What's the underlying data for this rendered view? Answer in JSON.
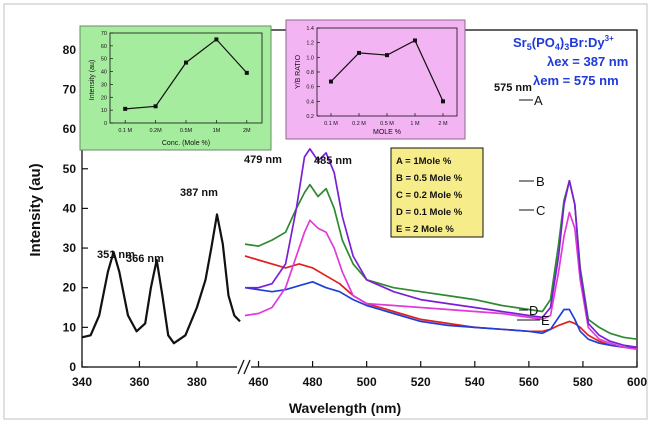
{
  "chart_data": {
    "type": "line",
    "title_parts": {
      "sr": "Sr",
      "sr_sub": "5",
      "po": "(PO",
      "po_sub": "4",
      "po_close": ")",
      "bi": "3",
      "br": "Br:Dy",
      "sup": "3+"
    },
    "ex_label": "λex = 387 nm",
    "em_label": "λem = 575 nm",
    "ylabel": "Intensity (au)",
    "xlabel": "Wavelength (nm)",
    "ylim": [
      0,
      85
    ],
    "y_ticks": [
      "0",
      "10",
      "20",
      "30",
      "40",
      "50",
      "60",
      "70",
      "80"
    ],
    "x_ticks_left": [
      "340",
      "360",
      "380"
    ],
    "x_ticks_right": [
      "460",
      "480",
      "500",
      "520",
      "540",
      "560",
      "580",
      "600"
    ],
    "xlim_left": [
      340,
      395
    ],
    "xlim_right": [
      455,
      600
    ],
    "colors": {
      "excitation": "#111111",
      "A": "#7b1fd6",
      "B": "#2e8a2e",
      "C": "#e03ad8",
      "D": "#1f3fd8",
      "E": "#e02020"
    },
    "excitation": {
      "x": [
        340,
        343,
        346,
        349,
        351,
        353,
        356,
        359,
        362,
        364,
        366,
        368,
        370,
        372,
        376,
        380,
        383,
        385,
        387,
        389,
        391,
        393,
        395
      ],
      "y": [
        7.5,
        8,
        13,
        24,
        29,
        24,
        13,
        9,
        11,
        20,
        27,
        18,
        8,
        6,
        8,
        15,
        22,
        30,
        38.5,
        31,
        18,
        13,
        11.5
      ]
    },
    "peak_labels": {
      "e351": "351 nm",
      "e366": "366 nm",
      "e387": "387 nm",
      "e479": "479 nm",
      "e485": "485 nm",
      "e575": "575 nm"
    },
    "series": [
      {
        "name": "A",
        "x": [
          455,
          460,
          465,
          470,
          474,
          477,
          479,
          482,
          485,
          488,
          491,
          495,
          500,
          510,
          520,
          530,
          540,
          550,
          560,
          565,
          568,
          571,
          573,
          575,
          577,
          579,
          582,
          586,
          590,
          595,
          600
        ],
        "y": [
          20,
          20,
          21,
          26,
          40,
          53,
          55,
          52,
          54,
          49,
          38,
          28,
          22,
          19,
          17,
          16,
          15,
          14,
          13,
          12.5,
          15,
          28,
          41,
          47,
          41,
          24,
          11,
          8,
          6.5,
          5.5,
          5
        ]
      },
      {
        "name": "B",
        "x": [
          455,
          460,
          465,
          470,
          474,
          477,
          479,
          482,
          485,
          488,
          491,
          495,
          500,
          510,
          520,
          530,
          540,
          550,
          560,
          565,
          568,
          571,
          573,
          575,
          577,
          579,
          582,
          586,
          590,
          595,
          600
        ],
        "y": [
          31,
          30.5,
          32,
          34,
          40,
          44,
          46,
          43,
          45,
          40,
          32,
          26,
          22,
          20,
          19,
          18,
          17,
          15.5,
          14.5,
          14,
          17,
          31,
          42,
          47,
          41,
          25,
          12,
          10,
          8.5,
          7.5,
          7
        ]
      },
      {
        "name": "C",
        "x": [
          455,
          460,
          465,
          470,
          474,
          477,
          479,
          482,
          485,
          488,
          491,
          495,
          500,
          510,
          520,
          530,
          540,
          550,
          560,
          565,
          568,
          571,
          573,
          575,
          577,
          579,
          582,
          586,
          590,
          595,
          600
        ],
        "y": [
          13,
          13.5,
          15,
          20,
          28,
          34,
          37,
          35,
          34,
          30,
          24,
          18,
          16,
          15.5,
          15,
          14.5,
          14,
          13.5,
          12.5,
          12,
          13,
          24,
          33,
          39,
          35,
          22,
          10,
          7,
          6,
          5,
          4.5
        ]
      },
      {
        "name": "D",
        "x": [
          455,
          460,
          465,
          470,
          475,
          480,
          485,
          490,
          495,
          500,
          510,
          520,
          530,
          540,
          550,
          560,
          565,
          568,
          571,
          573,
          575,
          577,
          579,
          582,
          586,
          590,
          595,
          600
        ],
        "y": [
          20,
          19.5,
          19,
          19.5,
          20.5,
          21.5,
          20,
          19,
          17,
          15.5,
          13.5,
          11.5,
          10.5,
          10,
          9.5,
          9,
          8.5,
          9.5,
          12.5,
          14.5,
          14.5,
          12,
          9,
          7,
          6,
          5.5,
          5,
          5
        ]
      },
      {
        "name": "E",
        "x": [
          455,
          460,
          465,
          470,
          475,
          480,
          485,
          490,
          495,
          500,
          510,
          520,
          530,
          540,
          550,
          560,
          565,
          568,
          571,
          573,
          575,
          577,
          579,
          582,
          586,
          590,
          595,
          600
        ],
        "y": [
          28,
          27,
          26,
          25,
          26,
          25,
          23,
          21,
          18,
          16,
          14,
          12,
          11,
          10,
          9.5,
          9,
          9,
          9.5,
          10.5,
          11,
          11.5,
          11,
          10,
          8,
          6.5,
          5.5,
          5,
          4.5
        ]
      }
    ],
    "curve_tags": [
      "A",
      "B",
      "C",
      "D",
      "E"
    ],
    "legend": {
      "position": "center",
      "entries": [
        "A = 1Mole %",
        "B = 0.5 Mole %",
        "C = 0.2 Mole %",
        "D = 0.1 Mole %",
        "E = 2 Mole %"
      ]
    },
    "insets": [
      {
        "position": "top-left",
        "bg": "#a6ec9e",
        "type": "line",
        "categories": [
          "0.1 M",
          "0.2M",
          "0.5M",
          "1M",
          "2M"
        ],
        "values": [
          11,
          13,
          47,
          65,
          39
        ],
        "ylim": [
          0,
          70
        ],
        "y_ticks": [
          "0",
          "10",
          "20",
          "30",
          "40",
          "50",
          "60",
          "70"
        ],
        "ylabel": "Intensity (au)",
        "xlabel": "Conc. (Mole %)"
      },
      {
        "position": "top-center",
        "bg": "#f3b4f3",
        "type": "line",
        "categories": [
          "0.1 M",
          "0.2 M",
          "0.5 M",
          "1 M",
          "2 M"
        ],
        "values": [
          0.67,
          1.06,
          1.03,
          1.23,
          0.4
        ],
        "ylim": [
          0.2,
          1.4
        ],
        "y_ticks": [
          "0.2",
          "0.4",
          "0.6",
          "0.8",
          "1.0",
          "1.2",
          "1.4"
        ],
        "ylabel": "Y/B RATIO",
        "xlabel": "MOLE %"
      }
    ]
  }
}
